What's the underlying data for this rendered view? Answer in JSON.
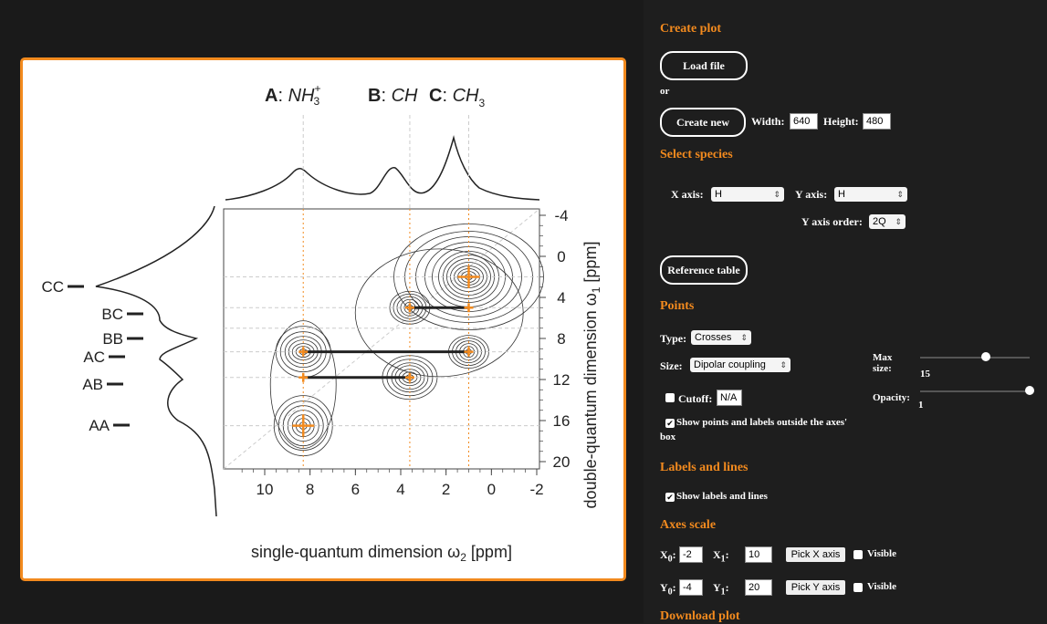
{
  "plot": {
    "species_labels": [
      {
        "letter": "A",
        "formula": "NH",
        "sub": "3",
        "sup": "+"
      },
      {
        "letter": "B",
        "formula": "CH",
        "sub": "",
        "sup": ""
      },
      {
        "letter": "C",
        "formula": "CH",
        "sub": "3",
        "sup": ""
      }
    ],
    "pair_labels": [
      "CC",
      "BC",
      "BB",
      "AC",
      "AB",
      "AA"
    ],
    "x_ticks": [
      "10",
      "8",
      "6",
      "4",
      "2",
      "0",
      "-2"
    ],
    "y_ticks": [
      "-4",
      "0",
      "4",
      "8",
      "12",
      "16",
      "20"
    ],
    "x_axis_label": "single-quantum dimension ω",
    "x_axis_sub": "2",
    "x_axis_unit": " [ppm]",
    "y_axis_label": "double-quantum dimension ω",
    "y_axis_sub": "1",
    "y_axis_unit": " [ppm]",
    "accent_color": "#f28a1e",
    "points": [
      {
        "x": 8.3,
        "y": 16.5
      },
      {
        "x": 8.3,
        "y": 9.3
      },
      {
        "x": 8.3,
        "y": 11.8
      },
      {
        "x": 3.6,
        "y": 11.8
      },
      {
        "x": 3.6,
        "y": 5.0
      },
      {
        "x": 1.0,
        "y": 9.3
      },
      {
        "x": 1.0,
        "y": 5.0
      },
      {
        "x": 1.0,
        "y": 2.0
      }
    ],
    "lines": [
      {
        "x1": 8.3,
        "y1": 9.3,
        "x2": 1.0,
        "y2": 9.3
      },
      {
        "x1": 8.3,
        "y1": 11.8,
        "x2": 3.6,
        "y2": 11.8
      },
      {
        "x1": 3.6,
        "y1": 5.0,
        "x2": 1.0,
        "y2": 5.0
      }
    ],
    "xlim": [
      -2,
      10
    ],
    "ylim": [
      -4,
      20
    ]
  },
  "panel": {
    "create_plot_title": "Create plot",
    "load_file": "Load file",
    "or": "or",
    "create_new": "Create new",
    "width_label": "Width:",
    "width_value": "640",
    "height_label": "Height:",
    "height_value": "480",
    "select_species_title": "Select species",
    "x_axis_label": "X axis:",
    "x_axis_value": "H",
    "y_axis_label": "Y axis:",
    "y_axis_value": "H",
    "y_axis_order_label": "Y axis order:",
    "y_axis_order_value": "2Q",
    "reference_table": "Reference table",
    "points_title": "Points",
    "type_label": "Type:",
    "type_value": "Crosses",
    "size_label": "Size:",
    "size_value": "Dipolar coupling",
    "max_size_label_1": "Max",
    "max_size_label_2": "size:",
    "max_size_value": "15",
    "max_size_level": 0.6,
    "cutoff_label": "Cutoff:",
    "cutoff_value": "N/A",
    "opacity_label": "Opacity:",
    "opacity_value": "1",
    "opacity_level": 1.0,
    "show_points_label_1": "Show points and labels outside the axes'",
    "show_points_label_2": "box",
    "labels_lines_title": "Labels and lines",
    "show_labels_lines": "Show labels and lines",
    "axes_scale_title": "Axes scale",
    "x0_label": "X",
    "x0_sub": "0",
    "x0_value": "-2",
    "x1_label": "X",
    "x1_sub": "1",
    "x1_value": "10",
    "pick_x_axis": "Pick X axis",
    "visible_x": "Visible",
    "y0_label": "Y",
    "y0_sub": "0",
    "y0_value": "-4",
    "y1_label": "Y",
    "y1_sub": "1",
    "y1_value": "20",
    "pick_y_axis": "Pick Y axis",
    "visible_y": "Visible",
    "download_plot_title": "Download plot",
    "check_mark": "✔"
  }
}
